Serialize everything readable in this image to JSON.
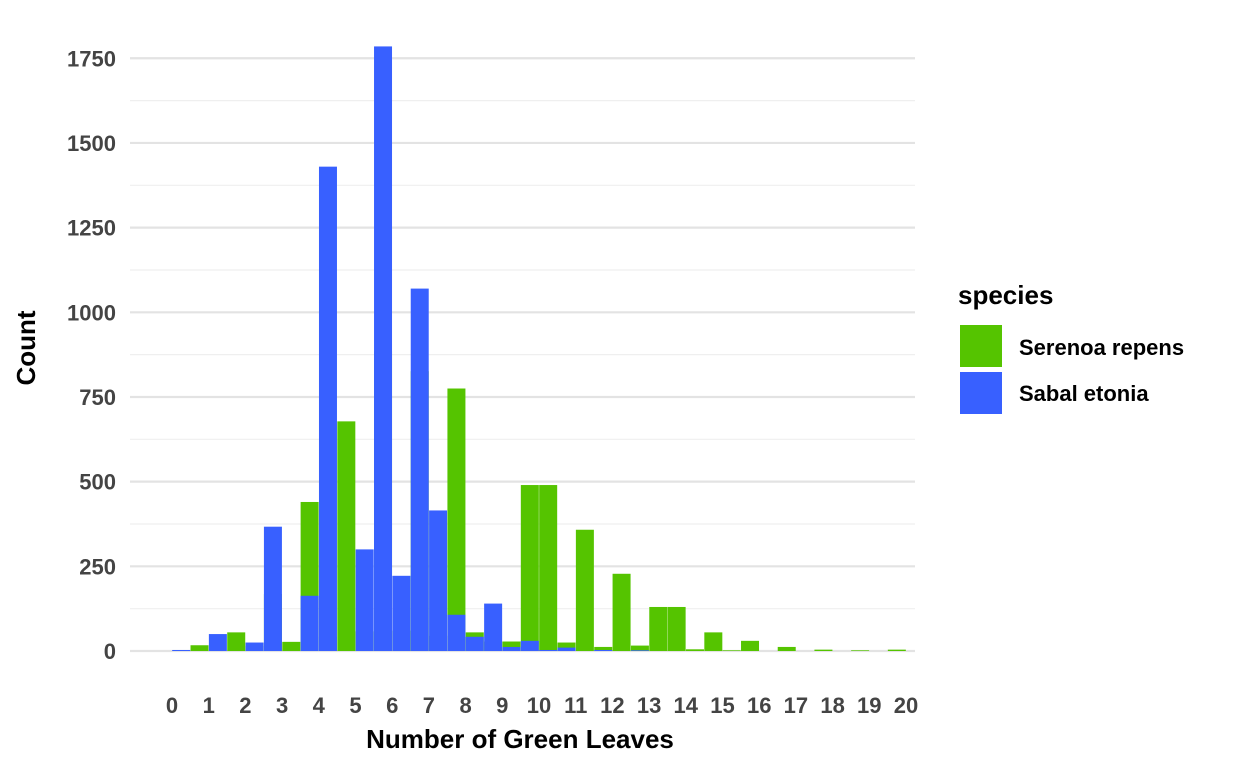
{
  "chart_data": {
    "type": "bar",
    "xlabel": "Number of Green Leaves",
    "ylabel": "Count",
    "ylim": [
      0,
      1800
    ],
    "yticks": [
      0,
      250,
      500,
      750,
      1000,
      1250,
      1500,
      1750
    ],
    "x": [
      0,
      1,
      2,
      3,
      4,
      5,
      6,
      7,
      8,
      9,
      10,
      11,
      12,
      13,
      14,
      15,
      16,
      17,
      18,
      19,
      20
    ],
    "grid": true,
    "legend": {
      "title": "species",
      "position": "right"
    },
    "series": [
      {
        "name": "Serenoa repens",
        "color": "#55c400",
        "points": [
          [
            0.75,
            17
          ],
          [
            1.75,
            55
          ],
          [
            2.25,
            15
          ],
          [
            2.75,
            168
          ],
          [
            3.25,
            27
          ],
          [
            3.75,
            440
          ],
          [
            4.25,
            42
          ],
          [
            4.75,
            678
          ],
          [
            5.25,
            58
          ],
          [
            5.75,
            885
          ],
          [
            6.25,
            60
          ],
          [
            6.75,
            826
          ],
          [
            7.25,
            45
          ],
          [
            7.75,
            775
          ],
          [
            8.25,
            55
          ],
          [
            8.75,
            28
          ],
          [
            9.25,
            28
          ],
          [
            9.75,
            490
          ],
          [
            10.25,
            490
          ],
          [
            10.75,
            25
          ],
          [
            11.25,
            358
          ],
          [
            11.75,
            12
          ],
          [
            12.25,
            228
          ],
          [
            12.75,
            16
          ],
          [
            13.25,
            130
          ],
          [
            13.75,
            130
          ],
          [
            14.25,
            5
          ],
          [
            14.75,
            55
          ],
          [
            15.25,
            2
          ],
          [
            15.75,
            30
          ],
          [
            16.75,
            12
          ],
          [
            17.75,
            4
          ],
          [
            18.75,
            2
          ],
          [
            19.75,
            4
          ]
        ]
      },
      {
        "name": "Sabal etonia",
        "color": "#3860ff",
        "points": [
          [
            0.25,
            3
          ],
          [
            1.25,
            50
          ],
          [
            2.25,
            25
          ],
          [
            2.75,
            367
          ],
          [
            3.75,
            163
          ],
          [
            4.25,
            1430
          ],
          [
            5.25,
            300
          ],
          [
            5.75,
            1785
          ],
          [
            6.25,
            222
          ],
          [
            6.75,
            1070
          ],
          [
            7.25,
            415
          ],
          [
            7.75,
            107
          ],
          [
            8.25,
            42
          ],
          [
            8.75,
            140
          ],
          [
            9.25,
            12
          ],
          [
            9.75,
            30
          ],
          [
            10.25,
            3
          ],
          [
            10.75,
            10
          ],
          [
            11.75,
            3
          ],
          [
            12.75,
            2
          ]
        ]
      }
    ]
  }
}
